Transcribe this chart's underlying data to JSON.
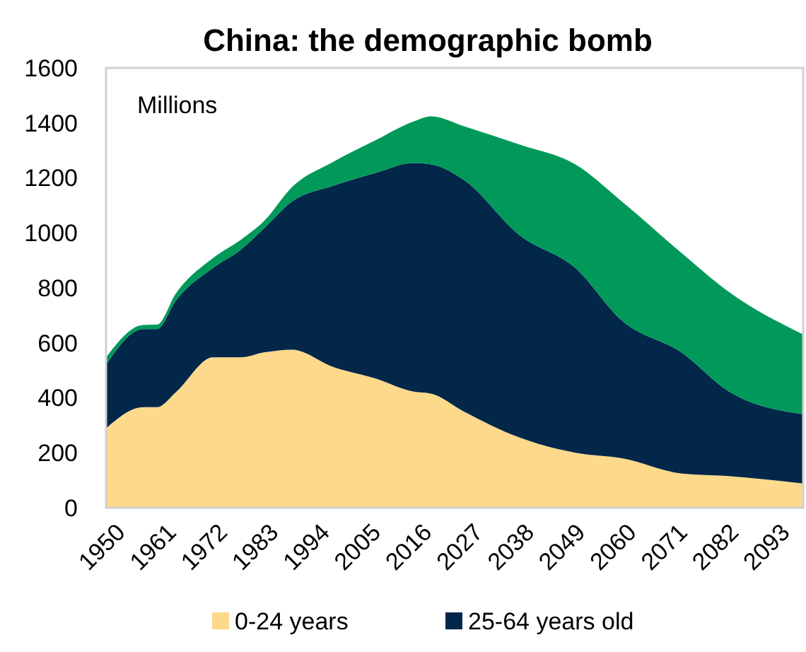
{
  "chart_data": {
    "type": "area",
    "stacked": true,
    "title": "China: the demographic bomb",
    "annotations": [
      "Millions"
    ],
    "x": [
      1950,
      1958,
      1961,
      1965,
      1973,
      1979,
      1984,
      1990,
      1999,
      2008,
      2016,
      2020,
      2027,
      2039,
      2051,
      2061,
      2074,
      2084,
      2100
    ],
    "series": [
      {
        "name": "0-24 years",
        "color": "#fdd98b",
        "values": [
          289,
          366,
          366,
          420,
          547,
          547,
          565,
          575,
          511,
          470,
          423,
          415,
          350,
          255,
          200,
          180,
          124,
          115,
          88
        ]
      },
      {
        "name": "25-64 years old",
        "color": "#022749",
        "values": [
          232,
          284,
          284,
          333,
          325,
          392,
          452,
          539,
          661,
          748,
          831,
          834,
          842,
          736,
          672,
          501,
          439,
          308,
          252
        ]
      },
      {
        "color": "#00995a",
        "values": [
          26,
          15,
          16,
          26,
          36,
          36,
          26,
          52,
          87,
          119,
          150,
          175,
          196,
          330,
          377,
          433,
          361,
          362,
          290
        ]
      }
    ],
    "xlim": [
      1950,
      2100
    ],
    "xticks": [
      1950,
      1961,
      1972,
      1983,
      1994,
      2005,
      2016,
      2027,
      2038,
      2049,
      2060,
      2071,
      2082,
      2093
    ],
    "ylim": [
      0,
      1600
    ],
    "yticks": [
      0,
      200,
      400,
      600,
      800,
      1000,
      1200,
      1400,
      1600
    ],
    "grid": false,
    "legend": "bottom"
  }
}
